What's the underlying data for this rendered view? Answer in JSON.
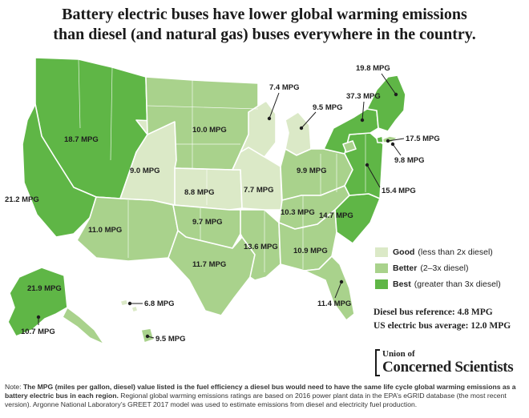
{
  "title": {
    "line1": "Battery electric buses have lower global warming emissions",
    "line2": "than diesel (and natural gas) buses everywhere in the country."
  },
  "colors": {
    "good": "#dbe9c7",
    "better": "#a9d28c",
    "best": "#5fb646",
    "text": "#1e1e1e"
  },
  "regions": [
    {
      "name": "Northwest",
      "label": "18.7 MPG",
      "rating": "best"
    },
    {
      "name": "California",
      "label": "21.2 MPG",
      "rating": "best"
    },
    {
      "name": "Southwest",
      "label": "11.0 MPG",
      "rating": "better"
    },
    {
      "name": "Rocky Mountains",
      "label": "9.0 MPG",
      "rating": "good"
    },
    {
      "name": "Upper Midwest",
      "label": "10.0 MPG",
      "rating": "better"
    },
    {
      "name": "Central Plains",
      "label": "8.8 MPG",
      "rating": "good"
    },
    {
      "name": "Southern Plains",
      "label": "9.7 MPG",
      "rating": "better"
    },
    {
      "name": "Texas",
      "label": "11.7 MPG",
      "rating": "better"
    },
    {
      "name": "Mississippi Valley",
      "label": "13.6 MPG",
      "rating": "better"
    },
    {
      "name": "Illinois / Missouri",
      "label": "7.7 MPG",
      "rating": "good"
    },
    {
      "name": "Wisconsin",
      "label": "7.4 MPG",
      "rating": "good"
    },
    {
      "name": "Michigan",
      "label": "9.5 MPG",
      "rating": "good"
    },
    {
      "name": "Ohio Valley",
      "label": "9.9 MPG",
      "rating": "better"
    },
    {
      "name": "Tennessee Valley",
      "label": "10.3 MPG",
      "rating": "better"
    },
    {
      "name": "Southeast",
      "label": "10.9 MPG",
      "rating": "better"
    },
    {
      "name": "Florida",
      "label": "11.4 MPG",
      "rating": "better"
    },
    {
      "name": "Carolinas",
      "label": "14.7 MPG",
      "rating": "best"
    },
    {
      "name": "Mid-Atlantic",
      "label": "15.4 MPG",
      "rating": "best"
    },
    {
      "name": "Upstate New York",
      "label": "37.3 MPG",
      "rating": "best"
    },
    {
      "name": "New England",
      "label": "19.8 MPG",
      "rating": "best"
    },
    {
      "name": "Long Island",
      "label": "9.8 MPG",
      "rating": "better"
    },
    {
      "name": "New York City",
      "label": "17.5 MPG",
      "rating": "best"
    },
    {
      "name": "Alaska (main)",
      "label": "21.9 MPG",
      "rating": "best"
    },
    {
      "name": "Alaska (southeast)",
      "label": "10.7 MPG",
      "rating": "better"
    },
    {
      "name": "Hawaii (Oahu)",
      "label": "6.8 MPG",
      "rating": "good"
    },
    {
      "name": "Hawaii (Big Island)",
      "label": "9.5 MPG",
      "rating": "better"
    }
  ],
  "legend": {
    "good_label": "Good",
    "good_desc": "(less than 2x diesel)",
    "better_label": "Better",
    "better_desc": "(2–3x diesel)",
    "best_label": "Best",
    "best_desc": "(greater than 3x diesel)"
  },
  "reference": {
    "diesel": "Diesel bus reference: 4.8 MPG",
    "electric": "US electric bus average: 12.0 MPG"
  },
  "logo": {
    "line1": "Union of",
    "line2": "Concerned Scientists"
  },
  "note": {
    "prefix": "Note:",
    "bold": "The MPG (miles per gallon, diesel) value listed is the fuel efficiency a diesel bus would need to have the same life cycle global warming emissions as a battery electric bus in each region.",
    "rest": "Regional global warming emissions ratings are based on 2016 power plant data in the EPA’s eGRID database (the most recent version). Argonne National Laboratory’s GREET 2017 model was used to estimate emissions from diesel and electricity fuel production."
  }
}
